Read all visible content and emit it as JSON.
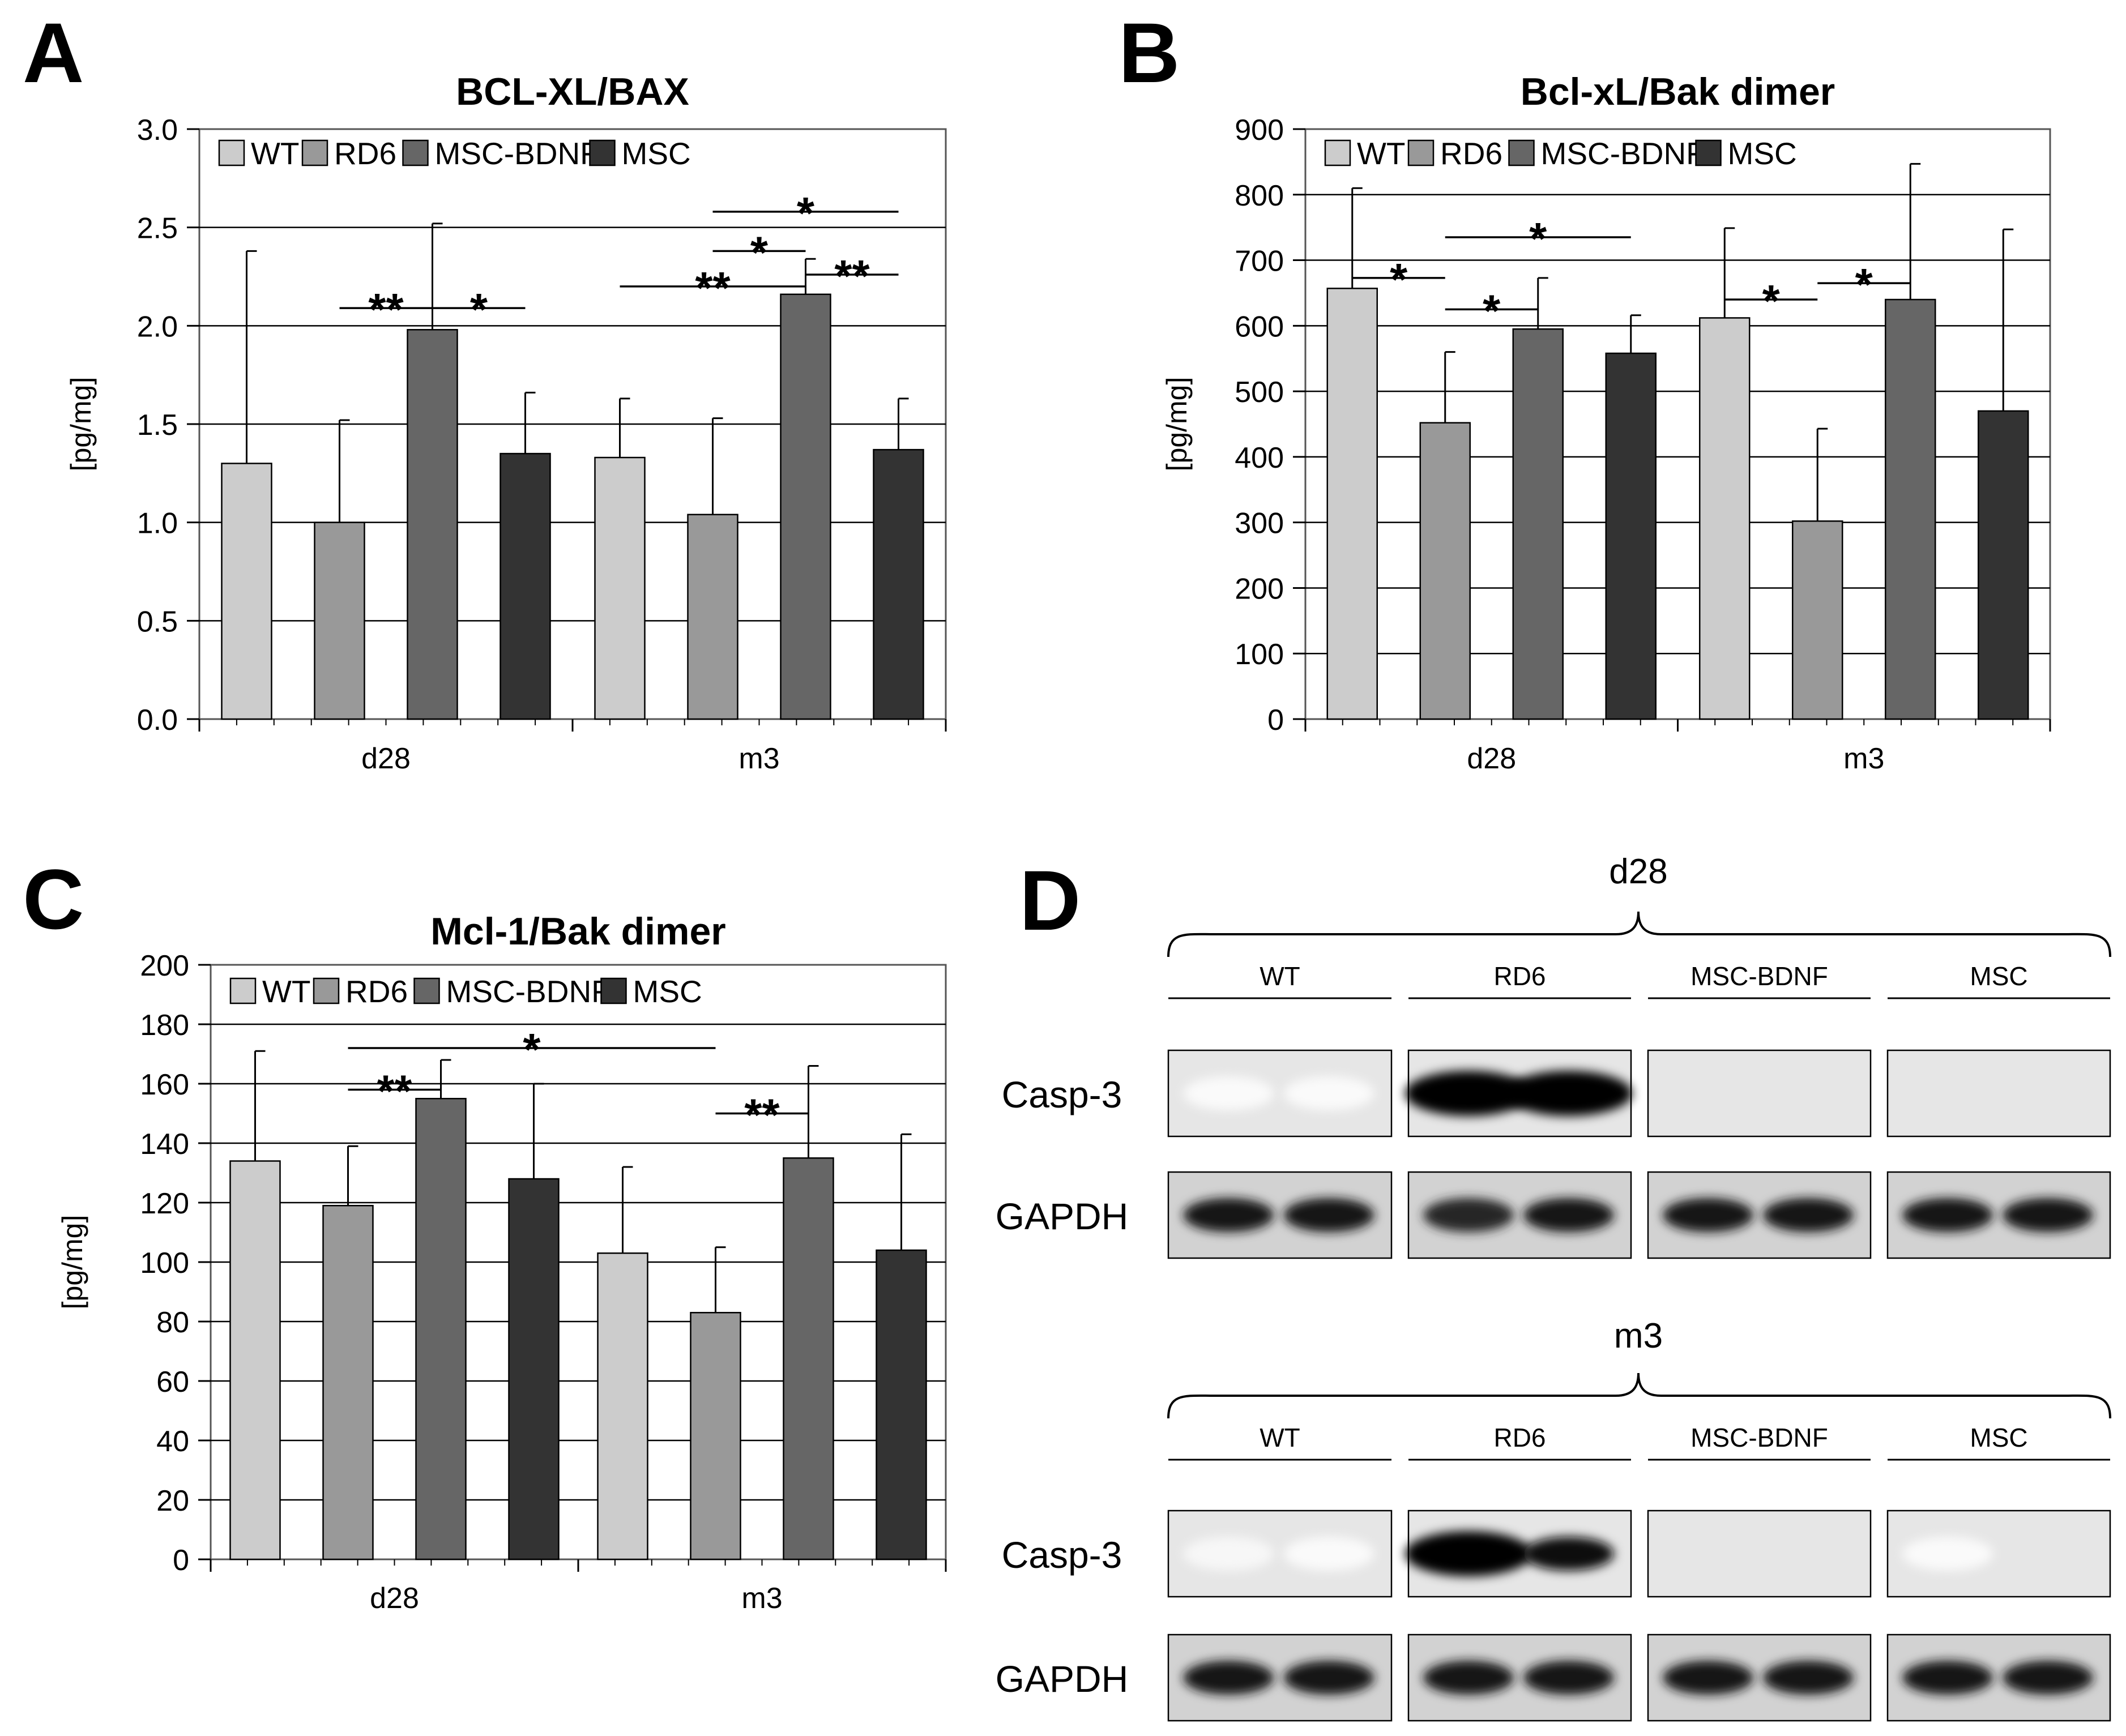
{
  "figure": {
    "panel_letters": [
      "A",
      "B",
      "C",
      "D"
    ],
    "colors": {
      "WT": "#cccccc",
      "RD6": "#999999",
      "MSC-BDNF": "#666666",
      "MSC": "#333333"
    }
  },
  "chart_data": [
    {
      "panel": "A",
      "type": "bar",
      "title": "BCL-XL/BAX",
      "ylabel": "[pg/mg]",
      "xlabel": "",
      "ylim": [
        0,
        3
      ],
      "yticks": [
        "0.0",
        "0.5",
        "1.0",
        "1.5",
        "2.0",
        "2.5",
        "3.0"
      ],
      "grid": true,
      "legend_position": "top",
      "categories": [
        "d28",
        "m3"
      ],
      "series": [
        {
          "name": "WT",
          "values": [
            1.3,
            1.33
          ],
          "errors": [
            1.08,
            0.3
          ]
        },
        {
          "name": "RD6",
          "values": [
            1.0,
            1.04
          ],
          "errors": [
            0.52,
            0.49
          ]
        },
        {
          "name": "MSC-BDNF",
          "values": [
            1.98,
            2.16
          ],
          "errors": [
            0.54,
            0.18
          ]
        },
        {
          "name": "MSC",
          "values": [
            1.35,
            1.37
          ],
          "errors": [
            0.31,
            0.26
          ]
        }
      ],
      "significance": [
        {
          "from": [
            0,
            1
          ],
          "to": [
            0,
            2
          ],
          "label": "**",
          "y": 2.09
        },
        {
          "from": [
            0,
            2
          ],
          "to": [
            0,
            3
          ],
          "label": "*",
          "y": 2.09
        },
        {
          "from": [
            1,
            0
          ],
          "to": [
            1,
            2
          ],
          "label": "**",
          "y": 2.2
        },
        {
          "from": [
            1,
            1
          ],
          "to": [
            1,
            2
          ],
          "label": "*",
          "y": 2.38
        },
        {
          "from": [
            1,
            1
          ],
          "to": [
            1,
            3
          ],
          "label": "*",
          "y": 2.58
        },
        {
          "from": [
            1,
            2
          ],
          "to": [
            1,
            3
          ],
          "label": "**",
          "y": 2.26
        }
      ]
    },
    {
      "panel": "B",
      "type": "bar",
      "title": "Bcl-xL/Bak dimer",
      "ylabel": "[pg/mg]",
      "xlabel": "",
      "ylim": [
        0,
        900
      ],
      "yticks": [
        "0",
        "100",
        "200",
        "300",
        "400",
        "500",
        "600",
        "700",
        "800",
        "900"
      ],
      "grid": true,
      "legend_position": "top",
      "categories": [
        "d28",
        "m3"
      ],
      "series": [
        {
          "name": "WT",
          "values": [
            657,
            612
          ],
          "errors": [
            153,
            137
          ]
        },
        {
          "name": "RD6",
          "values": [
            452,
            302
          ],
          "errors": [
            108,
            141
          ]
        },
        {
          "name": "MSC-BDNF",
          "values": [
            595,
            640
          ],
          "errors": [
            78,
            207
          ]
        },
        {
          "name": "MSC",
          "values": [
            558,
            470
          ],
          "errors": [
            58,
            277
          ]
        }
      ],
      "significance": [
        {
          "from": [
            0,
            0
          ],
          "to": [
            0,
            1
          ],
          "label": "*",
          "y": 673
        },
        {
          "from": [
            0,
            1
          ],
          "to": [
            0,
            2
          ],
          "label": "*",
          "y": 625
        },
        {
          "from": [
            0,
            1
          ],
          "to": [
            0,
            3
          ],
          "label": "*",
          "y": 735
        },
        {
          "from": [
            1,
            0
          ],
          "to": [
            1,
            1
          ],
          "label": "*",
          "y": 640
        },
        {
          "from": [
            1,
            1
          ],
          "to": [
            1,
            2
          ],
          "label": "*",
          "y": 665
        }
      ]
    },
    {
      "panel": "C",
      "type": "bar",
      "title": "Mcl-1/Bak dimer",
      "ylabel": "[pg/mg]",
      "xlabel": "",
      "ylim": [
        0,
        200
      ],
      "yticks": [
        "0",
        "20",
        "40",
        "60",
        "80",
        "100",
        "120",
        "140",
        "160",
        "180",
        "200"
      ],
      "grid": true,
      "legend_position": "top",
      "categories": [
        "d28",
        "m3"
      ],
      "series": [
        {
          "name": "WT",
          "values": [
            134,
            103
          ],
          "errors": [
            37,
            29
          ]
        },
        {
          "name": "RD6",
          "values": [
            119,
            83
          ],
          "errors": [
            20,
            22
          ]
        },
        {
          "name": "MSC-BDNF",
          "values": [
            155,
            135
          ],
          "errors": [
            13,
            31
          ]
        },
        {
          "name": "MSC",
          "values": [
            128,
            104
          ],
          "errors": [
            32,
            39
          ]
        }
      ],
      "significance": [
        {
          "from": [
            0,
            1
          ],
          "to": [
            0,
            2
          ],
          "label": "**",
          "y": 158
        },
        {
          "from": [
            0,
            1
          ],
          "to": [
            1,
            1
          ],
          "label": "*",
          "y": 172
        },
        {
          "from": [
            1,
            1
          ],
          "to": [
            1,
            2
          ],
          "label": "**",
          "y": 150
        }
      ]
    }
  ],
  "blot": {
    "panel": "D",
    "timepoints": [
      {
        "label": "d28",
        "groups": [
          "WT",
          "RD6",
          "MSC-BDNF",
          "MSC"
        ],
        "rows": [
          {
            "label": "Casp-3",
            "intensity": [
              [
                0.02,
                0.02
              ],
              [
                1.0,
                1.0
              ],
              [
                0.0,
                0.0
              ],
              [
                0.0,
                0.0
              ]
            ]
          },
          {
            "label": "GAPDH",
            "intensity": [
              [
                0.9,
                0.9
              ],
              [
                0.85,
                0.9
              ],
              [
                0.9,
                0.9
              ],
              [
                0.9,
                0.9
              ]
            ]
          }
        ]
      },
      {
        "label": "m3",
        "groups": [
          "WT",
          "RD6",
          "MSC-BDNF",
          "MSC"
        ],
        "rows": [
          {
            "label": "Casp-3",
            "intensity": [
              [
                0.03,
                0.02
              ],
              [
                1.0,
                0.95
              ],
              [
                0.0,
                0.0
              ],
              [
                0.02,
                0.0
              ]
            ]
          },
          {
            "label": "GAPDH",
            "intensity": [
              [
                0.9,
                0.9
              ],
              [
                0.9,
                0.9
              ],
              [
                0.9,
                0.9
              ],
              [
                0.9,
                0.9
              ]
            ]
          }
        ]
      }
    ]
  }
}
